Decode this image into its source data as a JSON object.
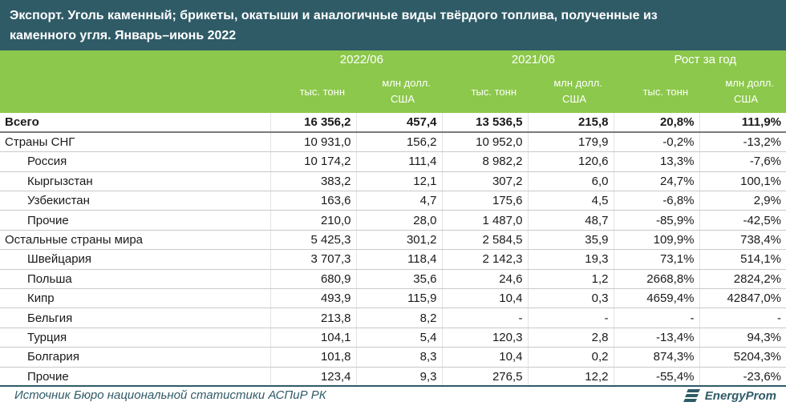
{
  "title": {
    "line1": "Экспорт. Уголь каменный; брикеты, окатыши и аналогичные виды твёрдого топлива, полученные из",
    "line2": "каменного угля. Январь–июнь 2022"
  },
  "header": {
    "groups": [
      "2022/06",
      "2021/06",
      "Рост за год"
    ],
    "sub_tons": "тыс. тонн",
    "sub_usd_1": "млн долл.",
    "sub_usd_2": "США"
  },
  "rows": [
    {
      "label": "Всего",
      "v": [
        "16 356,2",
        "457,4",
        "13 536,5",
        "215,8",
        "20,8%",
        "111,9%"
      ]
    },
    {
      "label": "Страны СНГ",
      "v": [
        "10 931,0",
        "156,2",
        "10 952,0",
        "179,9",
        "-0,2%",
        "-13,2%"
      ]
    },
    {
      "label": "Россия",
      "v": [
        "10 174,2",
        "111,4",
        "8 982,2",
        "120,6",
        "13,3%",
        "-7,6%"
      ]
    },
    {
      "label": "Кыргызстан",
      "v": [
        "383,2",
        "12,1",
        "307,2",
        "6,0",
        "24,7%",
        "100,1%"
      ]
    },
    {
      "label": "Узбекистан",
      "v": [
        "163,6",
        "4,7",
        "175,6",
        "4,5",
        "-6,8%",
        "2,9%"
      ]
    },
    {
      "label": "Прочие",
      "v": [
        "210,0",
        "28,0",
        "1 487,0",
        "48,7",
        "-85,9%",
        "-42,5%"
      ]
    },
    {
      "label": "Остальные страны мира",
      "v": [
        "5 425,3",
        "301,2",
        "2 584,5",
        "35,9",
        "109,9%",
        "738,4%"
      ]
    },
    {
      "label": "Швейцария",
      "v": [
        "3 707,3",
        "118,4",
        "2 142,3",
        "19,3",
        "73,1%",
        "514,1%"
      ]
    },
    {
      "label": "Польша",
      "v": [
        "680,9",
        "35,6",
        "24,6",
        "1,2",
        "2668,8%",
        "2824,2%"
      ]
    },
    {
      "label": "Кипр",
      "v": [
        "493,9",
        "115,9",
        "10,4",
        "0,3",
        "4659,4%",
        "42847,0%"
      ]
    },
    {
      "label": "Бельгия",
      "v": [
        "213,8",
        "8,2",
        "-",
        "-",
        "-",
        "-"
      ]
    },
    {
      "label": "Турция",
      "v": [
        "104,1",
        "5,4",
        "120,3",
        "2,8",
        "-13,4%",
        "94,3%"
      ]
    },
    {
      "label": "Болгария",
      "v": [
        "101,8",
        "8,3",
        "10,4",
        "0,2",
        "874,3%",
        "5204,3%"
      ]
    },
    {
      "label": "Прочие",
      "v": [
        "123,4",
        "9,3",
        "276,5",
        "12,2",
        "-55,4%",
        "-23,6%"
      ]
    }
  ],
  "footer": {
    "source": "Источник Бюро национальной статистики АСПиР РК",
    "brand": "EnergyProm"
  },
  "colors": {
    "title_bg": "#2f5b67",
    "header_bg": "#8cc84b",
    "text": "#1a1a1a",
    "brand": "#2f5b67"
  }
}
